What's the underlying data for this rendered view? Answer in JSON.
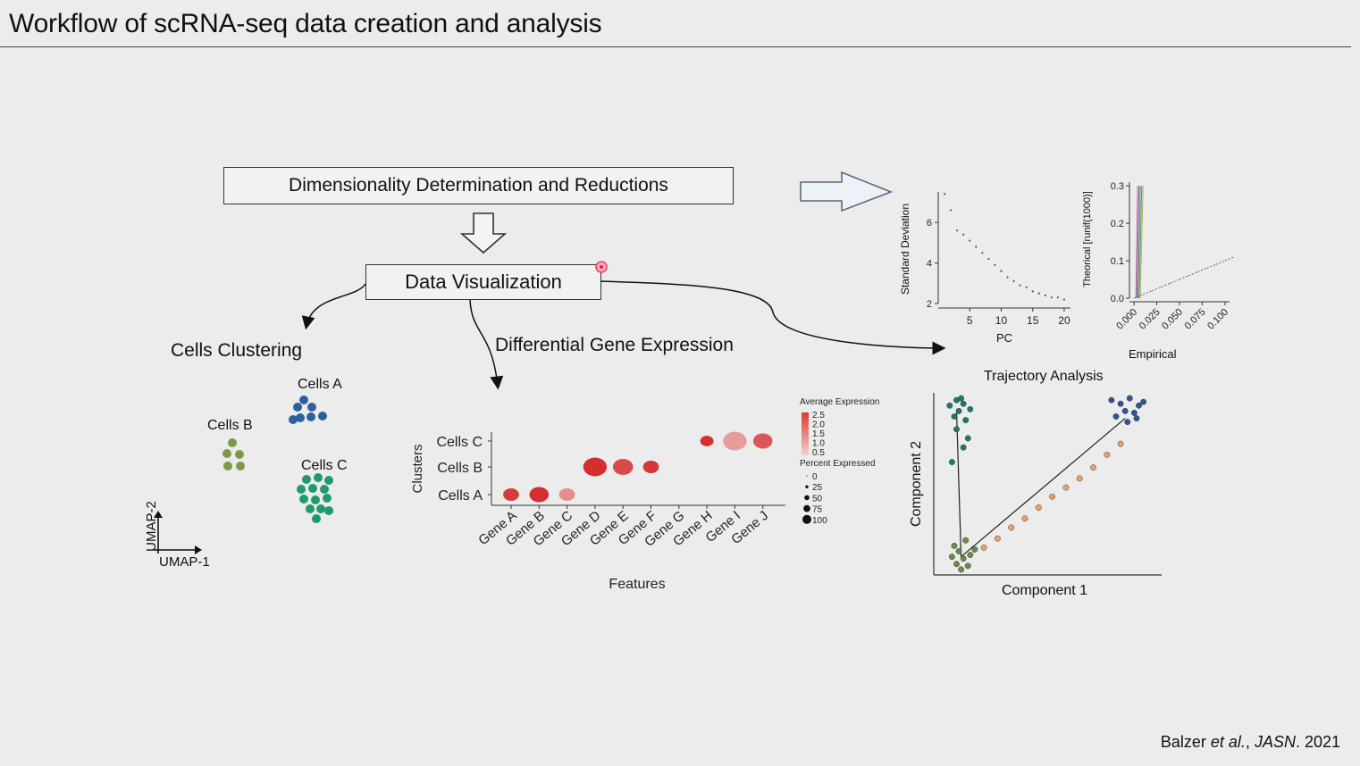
{
  "title": "Workflow of scRNA-seq data creation and analysis",
  "boxes": {
    "dimensionality": "Dimensionality Determination and Reductions",
    "data_visualization": "Data Visualization"
  },
  "branches": {
    "cells_clustering": "Cells Clustering",
    "differential_expression": "Differential Gene Expression",
    "trajectory": "Trajectory Analysis"
  },
  "umap": {
    "xlabel": "UMAP-1",
    "ylabel": "UMAP-2",
    "clusters": [
      {
        "name": "Cells A",
        "color": "#2e5f9f"
      },
      {
        "name": "Cells B",
        "color": "#7a9a4a"
      },
      {
        "name": "Cells C",
        "color": "#1f9a6a"
      }
    ]
  },
  "chart_data": [
    {
      "type": "scatter",
      "title": "",
      "xlabel": "PC",
      "ylabel": "Standard Deviation",
      "xticks": [
        5,
        10,
        15,
        20
      ],
      "yticks": [
        2,
        4,
        6
      ],
      "xlim": [
        0,
        21
      ],
      "ylim": [
        2,
        7.5
      ],
      "x": [
        1,
        2,
        3,
        4,
        5,
        6,
        7,
        8,
        9,
        10,
        11,
        12,
        13,
        14,
        15,
        16,
        17,
        18,
        19,
        20
      ],
      "y": [
        7.4,
        6.6,
        5.6,
        5.4,
        5.1,
        4.8,
        4.5,
        4.2,
        3.9,
        3.6,
        3.3,
        3.1,
        2.9,
        2.8,
        2.6,
        2.5,
        2.4,
        2.3,
        2.3,
        2.2
      ]
    },
    {
      "type": "scatter",
      "xlabel": "Empirical",
      "ylabel": "Theorical [runif(1000)]",
      "xticks": [
        "0.000",
        "0.025",
        "0.050",
        "0.075",
        "0.100"
      ],
      "yticks": [
        "0.0",
        "0.1",
        "0.2",
        "0.3"
      ],
      "xlim": [
        -0.005,
        0.105
      ],
      "ylim": [
        0,
        0.31
      ],
      "x": [
        0.0,
        0.01,
        0.02,
        0.03,
        0.04,
        0.05,
        0.06,
        0.07,
        0.08,
        0.09,
        0.1
      ],
      "y": [
        0.0,
        0.01,
        0.02,
        0.03,
        0.04,
        0.05,
        0.06,
        0.07,
        0.08,
        0.09,
        0.1
      ]
    },
    {
      "type": "scatter",
      "title": "",
      "xlabel": "Features",
      "ylabel": "Clusters",
      "categories": [
        "Gene A",
        "Gene B",
        "Gene C",
        "Gene D",
        "Gene E",
        "Gene F",
        "Gene G",
        "Gene H",
        "Gene I",
        "Gene J"
      ],
      "rows": [
        "Cells C",
        "Cells B",
        "Cells A"
      ],
      "legend_expression_title": "Average Expression",
      "legend_expression_ticks": [
        "2.5",
        "2.0",
        "1.5",
        "1.0",
        "0.5"
      ],
      "legend_percent_title": "Percent Expressed",
      "legend_percent_ticks": [
        "0",
        "25",
        "50",
        "75",
        "100"
      ],
      "points": [
        {
          "gene": "Gene A",
          "cluster": "Cells A",
          "avg_expr": 2.2,
          "pct": 55
        },
        {
          "gene": "Gene B",
          "cluster": "Cells A",
          "avg_expr": 2.4,
          "pct": 75
        },
        {
          "gene": "Gene C",
          "cluster": "Cells A",
          "avg_expr": 1.0,
          "pct": 55
        },
        {
          "gene": "Gene D",
          "cluster": "Cells B",
          "avg_expr": 2.4,
          "pct": 100
        },
        {
          "gene": "Gene E",
          "cluster": "Cells B",
          "avg_expr": 2.0,
          "pct": 80
        },
        {
          "gene": "Gene F",
          "cluster": "Cells B",
          "avg_expr": 2.3,
          "pct": 55
        },
        {
          "gene": "Gene H",
          "cluster": "Cells C",
          "avg_expr": 2.4,
          "pct": 40
        },
        {
          "gene": "Gene I",
          "cluster": "Cells C",
          "avg_expr": 0.8,
          "pct": 100
        },
        {
          "gene": "Gene J",
          "cluster": "Cells C",
          "avg_expr": 1.8,
          "pct": 75
        }
      ]
    },
    {
      "type": "scatter",
      "title": "",
      "xlabel": "Component 1",
      "ylabel": "Component 2",
      "series": [
        {
          "color": "#1f7a6a",
          "x": [
            1,
            1.3,
            0.7,
            1.6,
            1.1,
            0.9,
            1.4,
            1.2,
            1.0,
            1.5,
            1.3,
            0.8
          ],
          "y": [
            9.6,
            9.4,
            9.3,
            9.1,
            9.0,
            8.7,
            8.5,
            9.7,
            8.0,
            7.5,
            7.0,
            6.2
          ]
        },
        {
          "color": "#6e8a4a",
          "x": [
            0.8,
            1.0,
            1.3,
            1.5,
            1.1,
            0.9,
            1.6,
            1.2,
            1.4,
            1.8
          ],
          "y": [
            1.0,
            0.6,
            0.9,
            0.5,
            1.3,
            1.6,
            1.1,
            0.3,
            1.9,
            1.4
          ]
        },
        {
          "color": "#e8a070",
          "x": [
            2.2,
            2.8,
            3.4,
            4.0,
            4.6,
            5.2,
            5.8,
            6.4,
            7.0,
            7.6,
            8.2
          ],
          "y": [
            1.5,
            2.0,
            2.6,
            3.1,
            3.7,
            4.3,
            4.8,
            5.3,
            5.9,
            6.6,
            7.2
          ]
        },
        {
          "color": "#2f5590",
          "x": [
            7.8,
            8.2,
            8.6,
            9.0,
            8.4,
            8.0,
            8.8,
            9.2,
            8.5,
            8.9
          ],
          "y": [
            9.6,
            9.4,
            9.7,
            9.3,
            9.0,
            8.7,
            8.9,
            9.5,
            8.4,
            8.6
          ]
        }
      ]
    }
  ],
  "footer": {
    "author": "Balzer",
    "etal": " et al.",
    "sep": ", ",
    "journal": "JASN",
    "year": ". 2021"
  }
}
